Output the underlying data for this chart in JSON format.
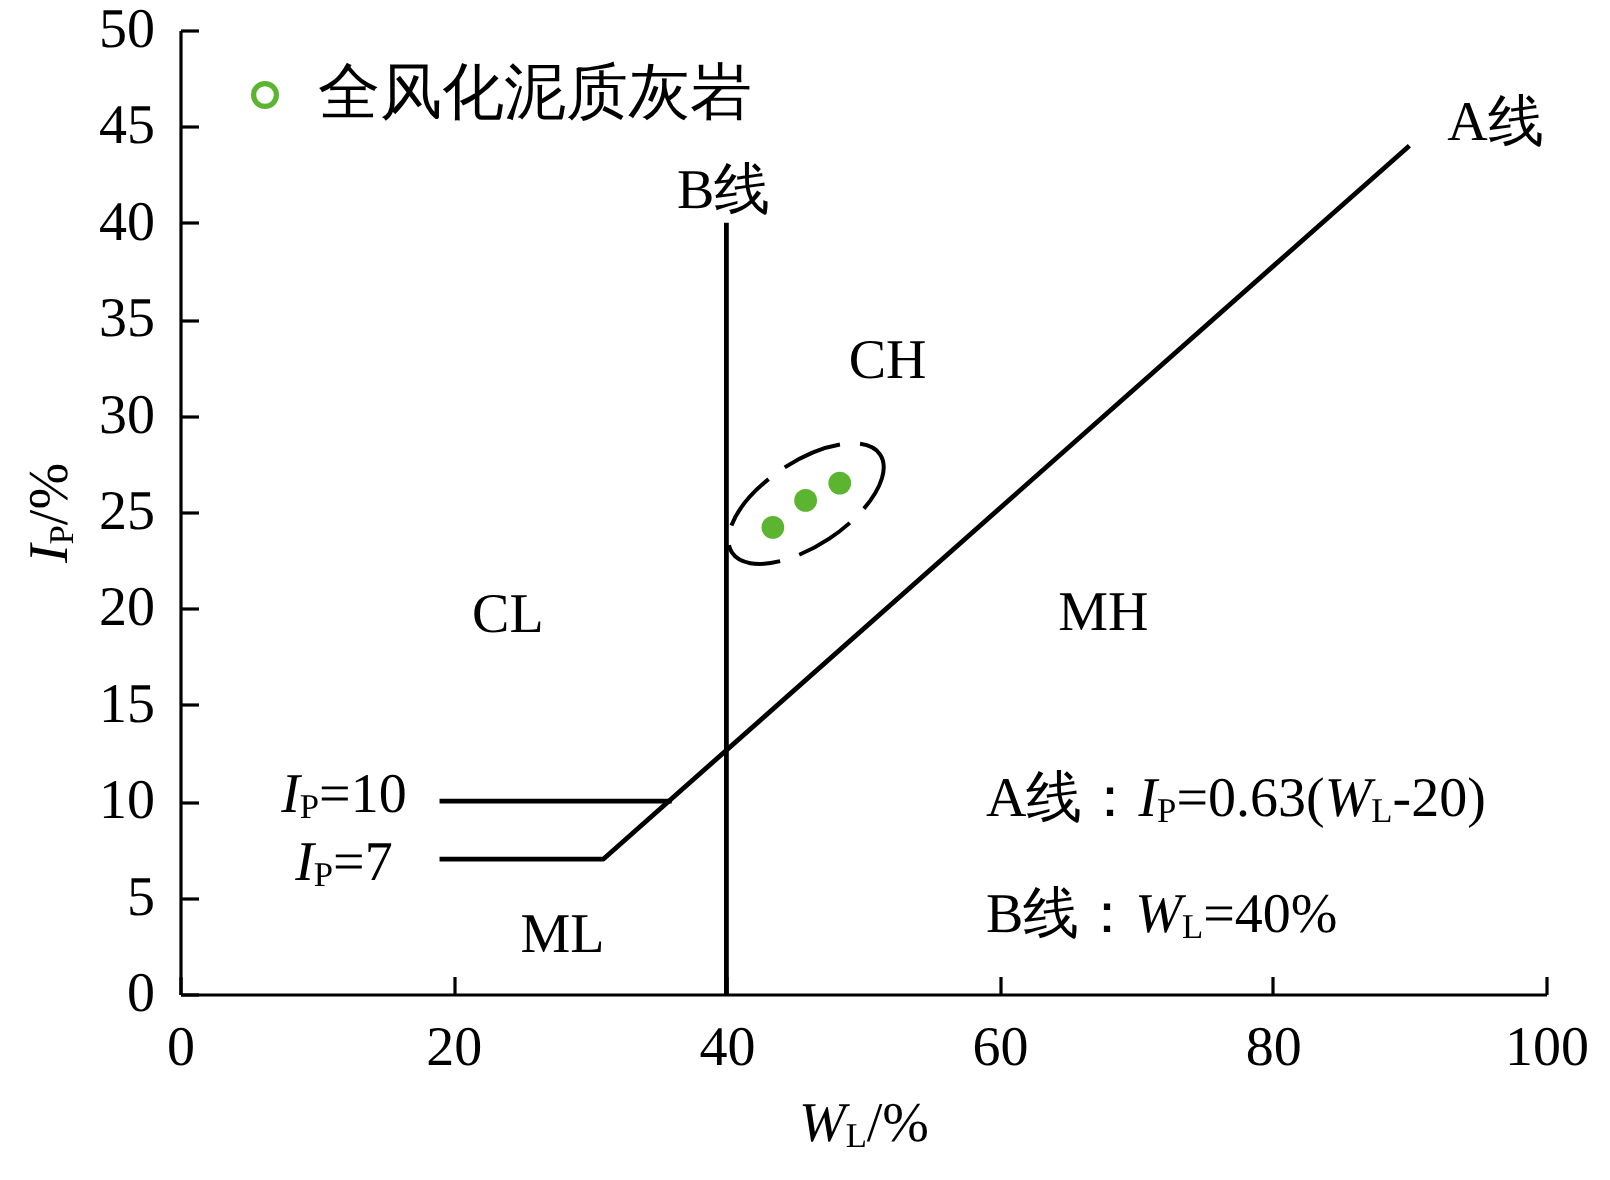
{
  "chart_data": {
    "type": "scatter",
    "xlabel": "W$_{L}$/%",
    "ylabel": "I$_{P}$/%",
    "xlim": [
      0,
      100
    ],
    "xticks": [
      0,
      20,
      40,
      60,
      80,
      100
    ],
    "ylim": [
      0,
      50
    ],
    "yticks": [
      0,
      5,
      10,
      15,
      20,
      25,
      30,
      35,
      40,
      45,
      50
    ],
    "legend": "top left",
    "marker": "circle",
    "line_style": "solid",
    "series": [
      {
        "name": "全风化泥质灰岩",
        "color": "#5cb531",
        "x": [
          43.4,
          45.8,
          48.3
        ],
        "values": [
          24.2,
          25.6,
          26.5
        ]
      },
      {
        "type": "line",
        "color": "#000000",
        "marker": "none",
        "x": [
          19,
          31,
          90
        ],
        "values": [
          7,
          7,
          44
        ]
      },
      {
        "type": "line",
        "color": "#000000",
        "marker": "none",
        "x": [
          19,
          36
        ],
        "values": [
          10,
          10
        ]
      },
      {
        "type": "line",
        "color": "#000000",
        "marker": "none",
        "x": [
          40,
          40
        ],
        "values": [
          0,
          40
        ]
      }
    ],
    "annotations": [
      "A线",
      "B线",
      "CH",
      "CL",
      "MH",
      "ML",
      "I$_{P}$=10",
      "I$_{P}$=7",
      "A线：I$_{P}$=0.63(W$_{L}$-20)",
      "B线：W$_{L}$=40%"
    ]
  }
}
